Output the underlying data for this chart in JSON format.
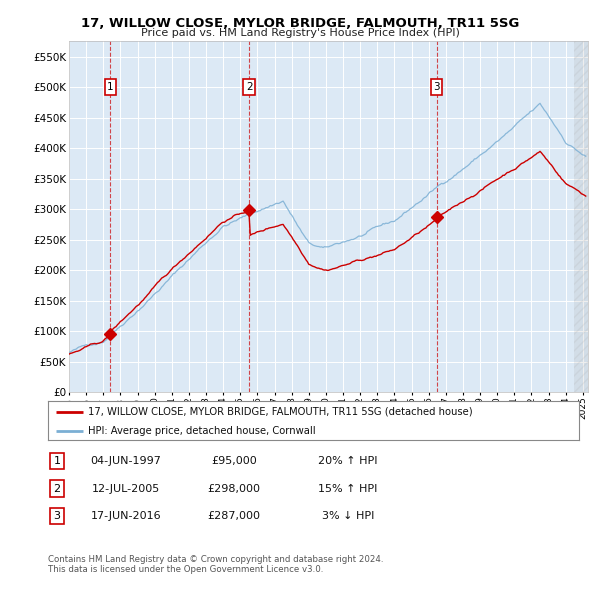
{
  "title": "17, WILLOW CLOSE, MYLOR BRIDGE, FALMOUTH, TR11 5SG",
  "subtitle": "Price paid vs. HM Land Registry's House Price Index (HPI)",
  "bg_color": "#dce9f5",
  "grid_color": "#ffffff",
  "hpi_line_color": "#7bafd4",
  "price_line_color": "#cc0000",
  "sale_marker_color": "#cc0000",
  "sale_years": [
    1997.42,
    2005.53,
    2016.46
  ],
  "sale_prices": [
    95000,
    298000,
    287000
  ],
  "sale_labels": [
    "1",
    "2",
    "3"
  ],
  "sale_date_strs": [
    "04-JUN-1997",
    "12-JUL-2005",
    "17-JUN-2016"
  ],
  "sale_price_strs": [
    "£95,000",
    "£298,000",
    "£287,000"
  ],
  "sale_hpi_strs": [
    "20% ↑ HPI",
    "15% ↑ HPI",
    "3% ↓ HPI"
  ],
  "ylim": [
    0,
    575000
  ],
  "yticks": [
    0,
    50000,
    100000,
    150000,
    200000,
    250000,
    300000,
    350000,
    400000,
    450000,
    500000,
    550000
  ],
  "ytick_labels": [
    "£0",
    "£50K",
    "£100K",
    "£150K",
    "£200K",
    "£250K",
    "£300K",
    "£350K",
    "£400K",
    "£450K",
    "£500K",
    "£550K"
  ],
  "legend_line1": "17, WILLOW CLOSE, MYLOR BRIDGE, FALMOUTH, TR11 5SG (detached house)",
  "legend_line2": "HPI: Average price, detached house, Cornwall",
  "footer1": "Contains HM Land Registry data © Crown copyright and database right 2024.",
  "footer2": "This data is licensed under the Open Government Licence v3.0.",
  "xmin": 1995,
  "xmax": 2025.3,
  "hatch_start": 2024.5
}
